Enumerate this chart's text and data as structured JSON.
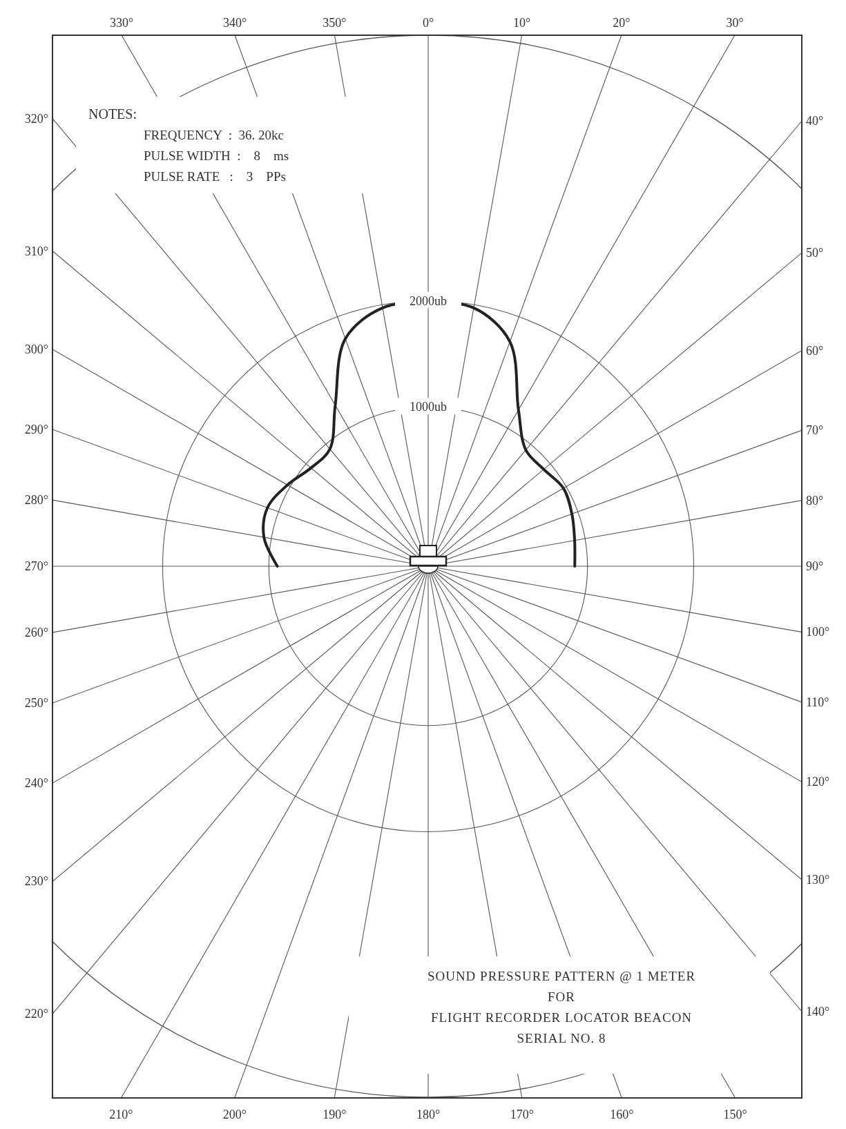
{
  "chart_data": {
    "type": "radar",
    "title": "SOUND PRESSURE PATTERN @ 1 METER\nFOR\nFLIGHT RECORDER LOCATOR BEACON\nSERIAL NO. 8",
    "annotations": [
      "NOTES:",
      "FREQUENCY  :  36. 20kc",
      "PULSE WIDTH  :    8    ms",
      "PULSE RATE   :    3    PPs"
    ],
    "categories": [
      "0°",
      "10°",
      "20°",
      "30°",
      "40°",
      "50°",
      "60°",
      "70°",
      "80°",
      "90°",
      "100°",
      "110°",
      "120°",
      "130°",
      "140°",
      "150°",
      "160°",
      "170°",
      "180°",
      "190°",
      "200°",
      "210°",
      "220°",
      "230°",
      "240°",
      "250°",
      "260°",
      "270°",
      "280°",
      "290°",
      "300°",
      "310°",
      "320°",
      "330°",
      "340°",
      "350°"
    ],
    "series": [
      {
        "color": "#222222",
        "values": [
          1980,
          1970,
          1750,
          1200,
          930,
          920,
          970,
          940,
          900,
          880,
          null,
          null,
          null,
          null,
          null,
          null,
          null,
          null,
          null,
          null,
          null,
          null,
          null,
          null,
          null,
          null,
          null,
          920,
          1070,
          1110,
          1030,
          940,
          940,
          1250,
          1780,
          1970
        ]
      }
    ],
    "ylim": [
      -500,
      4500
    ],
    "yticks": [
      {
        "value": 1000,
        "label": "1000ub"
      },
      {
        "value": 2000,
        "label": "2000ub"
      }
    ],
    "grid": true
  }
}
